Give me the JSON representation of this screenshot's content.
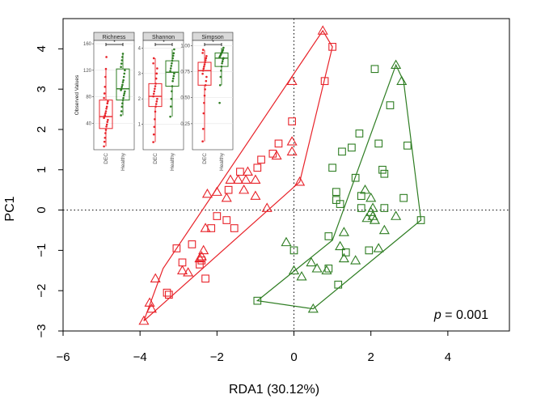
{
  "chart_data": [
    {
      "type": "scatter",
      "xlabel": "RDA1 (30.12%)",
      "ylabel": "PC1",
      "xlim": [
        -6.0,
        5.6
      ],
      "ylim": [
        -3.0,
        4.75
      ],
      "x_ticks": [
        -6,
        -4,
        -2,
        0,
        2,
        4
      ],
      "x_tick_labels": [
        "−6",
        "−4",
        "−2",
        "0",
        "2",
        "4"
      ],
      "y_ticks": [
        -3,
        -2,
        -1,
        0,
        1,
        2,
        3,
        4
      ],
      "y_tick_labels": [
        "−3",
        "−2",
        "−1",
        "0",
        "1",
        "2",
        "3",
        "4"
      ],
      "reference_lines": {
        "x": 0,
        "y": 0,
        "style": "dotted"
      },
      "annotation": {
        "prefix": "p",
        "text": " = 0.001"
      },
      "colors": {
        "red": "#e8232a",
        "green": "#2e7d22"
      },
      "series": [
        {
          "color": "red",
          "hull": [
            [
              0.75,
              4.45
            ],
            [
              1.0,
              4.05
            ],
            [
              0.15,
              0.7
            ],
            [
              -3.9,
              -2.75
            ],
            [
              -3.4,
              -1.45
            ]
          ],
          "triangles": [
            [
              0.75,
              4.45
            ],
            [
              -0.05,
              3.2
            ],
            [
              -0.05,
              1.7
            ],
            [
              -0.05,
              1.45
            ],
            [
              -0.45,
              1.35
            ],
            [
              -1.2,
              0.95
            ],
            [
              -1.0,
              0.75
            ],
            [
              -1.25,
              0.75
            ],
            [
              -1.45,
              0.75
            ],
            [
              -1.65,
              0.75
            ],
            [
              -1.3,
              0.5
            ],
            [
              -2.0,
              0.45
            ],
            [
              -2.25,
              0.4
            ],
            [
              -1.75,
              0.3
            ],
            [
              -1.0,
              0.35
            ],
            [
              -0.7,
              0.05
            ],
            [
              0.15,
              0.7
            ],
            [
              -2.3,
              -0.45
            ],
            [
              -2.35,
              -1.0
            ],
            [
              -2.4,
              -1.15
            ],
            [
              -2.45,
              -1.2
            ],
            [
              -2.9,
              -1.5
            ],
            [
              -2.75,
              -1.55
            ],
            [
              -3.6,
              -1.7
            ],
            [
              -3.75,
              -2.3
            ],
            [
              -3.7,
              -2.45
            ],
            [
              -3.9,
              -2.75
            ]
          ],
          "squares": [
            [
              1.0,
              4.05
            ],
            [
              0.8,
              3.2
            ],
            [
              -0.05,
              2.2
            ],
            [
              -0.4,
              1.65
            ],
            [
              -0.55,
              1.4
            ],
            [
              -0.85,
              1.25
            ],
            [
              -0.95,
              1.05
            ],
            [
              -1.4,
              0.95
            ],
            [
              -1.7,
              0.5
            ],
            [
              -2.0,
              -0.15
            ],
            [
              -1.75,
              -0.25
            ],
            [
              -1.55,
              -0.45
            ],
            [
              -2.15,
              -0.45
            ],
            [
              -2.65,
              -0.85
            ],
            [
              -3.05,
              -0.95
            ],
            [
              -2.9,
              -1.3
            ],
            [
              -2.4,
              -1.25
            ],
            [
              -2.45,
              -1.35
            ],
            [
              -3.3,
              -2.05
            ],
            [
              -3.25,
              -2.1
            ],
            [
              -2.3,
              -1.7
            ]
          ]
        },
        {
          "color": "green",
          "hull": [
            [
              2.65,
              3.6
            ],
            [
              1.0,
              -0.75
            ],
            [
              -0.95,
              -2.25
            ],
            [
              0.5,
              -2.45
            ],
            [
              3.3,
              -0.25
            ],
            [
              2.85,
              3.2
            ]
          ],
          "triangles": [
            [
              2.65,
              3.6
            ],
            [
              2.8,
              3.2
            ],
            [
              1.85,
              0.5
            ],
            [
              2.0,
              0.3
            ],
            [
              2.05,
              0.05
            ],
            [
              2.0,
              -0.05
            ],
            [
              2.05,
              -0.15
            ],
            [
              2.65,
              -0.15
            ],
            [
              1.9,
              -0.2
            ],
            [
              2.1,
              -0.25
            ],
            [
              2.35,
              -0.5
            ],
            [
              2.2,
              -0.95
            ],
            [
              1.3,
              -0.55
            ],
            [
              1.2,
              -0.9
            ],
            [
              1.3,
              -1.2
            ],
            [
              1.6,
              -1.25
            ],
            [
              -0.2,
              -0.8
            ],
            [
              0.0,
              -1.5
            ],
            [
              0.45,
              -1.3
            ],
            [
              0.6,
              -1.45
            ],
            [
              0.85,
              -1.5
            ],
            [
              0.2,
              -1.65
            ],
            [
              0.5,
              -2.45
            ]
          ],
          "squares": [
            [
              2.1,
              3.5
            ],
            [
              2.5,
              2.6
            ],
            [
              1.7,
              1.9
            ],
            [
              1.25,
              1.45
            ],
            [
              1.5,
              1.55
            ],
            [
              2.2,
              1.65
            ],
            [
              2.95,
              1.6
            ],
            [
              1.0,
              1.05
            ],
            [
              2.3,
              1.0
            ],
            [
              2.35,
              0.9
            ],
            [
              1.6,
              0.8
            ],
            [
              1.1,
              0.45
            ],
            [
              1.75,
              0.35
            ],
            [
              1.1,
              0.25
            ],
            [
              2.85,
              0.3
            ],
            [
              2.35,
              0.05
            ],
            [
              1.2,
              0.15
            ],
            [
              1.75,
              0.05
            ],
            [
              3.3,
              -0.25
            ],
            [
              0.0,
              -1.0
            ],
            [
              0.9,
              -0.65
            ],
            [
              1.35,
              -1.05
            ],
            [
              1.95,
              -1.0
            ],
            [
              0.9,
              -1.45
            ],
            [
              1.15,
              -1.85
            ],
            [
              -0.95,
              -2.25
            ]
          ]
        }
      ]
    },
    {
      "type": "box",
      "title": "Richness",
      "ylabel": "Observed Values",
      "categories": [
        "DEC",
        "Healthy"
      ],
      "ylim": [
        0,
        165
      ],
      "y_ticks": [
        40,
        80,
        120,
        160
      ],
      "y_tick_labels": [
        "40",
        "80",
        "120",
        "160"
      ],
      "significance": "*",
      "boxes": [
        {
          "category": "DEC",
          "color": "red",
          "q1": 32,
          "median": 50,
          "q3": 75,
          "whisker_low": 5,
          "whisker_high": 122
        },
        {
          "category": "Healthy",
          "color": "green",
          "q1": 75,
          "median": 92,
          "q3": 122,
          "whisker_low": 52,
          "whisker_high": 145
        }
      ],
      "points": {
        "DEC": [
          5,
          12,
          18,
          25,
          30,
          35,
          38,
          42,
          45,
          48,
          50,
          52,
          55,
          58,
          62,
          65,
          70,
          73,
          78,
          85,
          95,
          110,
          122,
          140
        ],
        "Healthy": [
          52,
          58,
          65,
          70,
          75,
          78,
          82,
          85,
          88,
          90,
          92,
          95,
          98,
          102,
          105,
          110,
          115,
          120,
          125,
          130,
          135,
          140,
          145
        ]
      }
    },
    {
      "type": "box",
      "title": "Shannon",
      "categories": [
        "DEC",
        "Healthy"
      ],
      "ylim": [
        0,
        4.3
      ],
      "y_ticks": [
        1,
        2,
        3,
        4
      ],
      "y_tick_labels": [
        "1",
        "2",
        "3",
        "4"
      ],
      "significance": "*",
      "boxes": [
        {
          "category": "DEC",
          "color": "red",
          "q1": 1.7,
          "median": 2.1,
          "q3": 2.6,
          "whisker_low": 0.3,
          "whisker_high": 3.6
        },
        {
          "category": "Healthy",
          "color": "green",
          "q1": 2.5,
          "median": 3.05,
          "q3": 3.5,
          "whisker_low": 1.3,
          "whisker_high": 3.95
        }
      ],
      "points": {
        "DEC": [
          0.3,
          0.6,
          0.9,
          1.2,
          1.5,
          1.7,
          1.8,
          1.9,
          2.0,
          2.1,
          2.2,
          2.3,
          2.4,
          2.5,
          2.6,
          2.8,
          3.0,
          3.2,
          3.4,
          3.6
        ],
        "Healthy": [
          1.3,
          1.7,
          2.0,
          2.3,
          2.5,
          2.7,
          2.8,
          2.9,
          3.0,
          3.1,
          3.2,
          3.3,
          3.4,
          3.5,
          3.6,
          3.7,
          3.8,
          3.95
        ]
      }
    },
    {
      "type": "box",
      "title": "Simpson",
      "categories": [
        "DEC",
        "Healthy"
      ],
      "ylim": [
        0,
        1.05
      ],
      "y_ticks": [
        0.25,
        0.5,
        0.75,
        1.0
      ],
      "y_tick_labels": [
        "0.25",
        "0.50",
        "0.75",
        "1.00"
      ],
      "significance": "*",
      "boxes": [
        {
          "category": "DEC",
          "color": "red",
          "q1": 0.62,
          "median": 0.76,
          "q3": 0.84,
          "whisker_low": 0.08,
          "whisker_high": 0.96
        },
        {
          "category": "Healthy",
          "color": "green",
          "q1": 0.8,
          "median": 0.88,
          "q3": 0.93,
          "whisker_low": 0.62,
          "whisker_high": 0.98
        }
      ],
      "points": {
        "DEC": [
          0.08,
          0.2,
          0.35,
          0.45,
          0.52,
          0.58,
          0.62,
          0.66,
          0.7,
          0.73,
          0.76,
          0.78,
          0.8,
          0.82,
          0.84,
          0.86,
          0.88,
          0.9,
          0.93,
          0.96
        ],
        "Healthy": [
          0.45,
          0.62,
          0.7,
          0.76,
          0.8,
          0.83,
          0.85,
          0.87,
          0.88,
          0.89,
          0.9,
          0.91,
          0.92,
          0.93,
          0.94,
          0.95,
          0.96,
          0.98
        ]
      }
    }
  ]
}
